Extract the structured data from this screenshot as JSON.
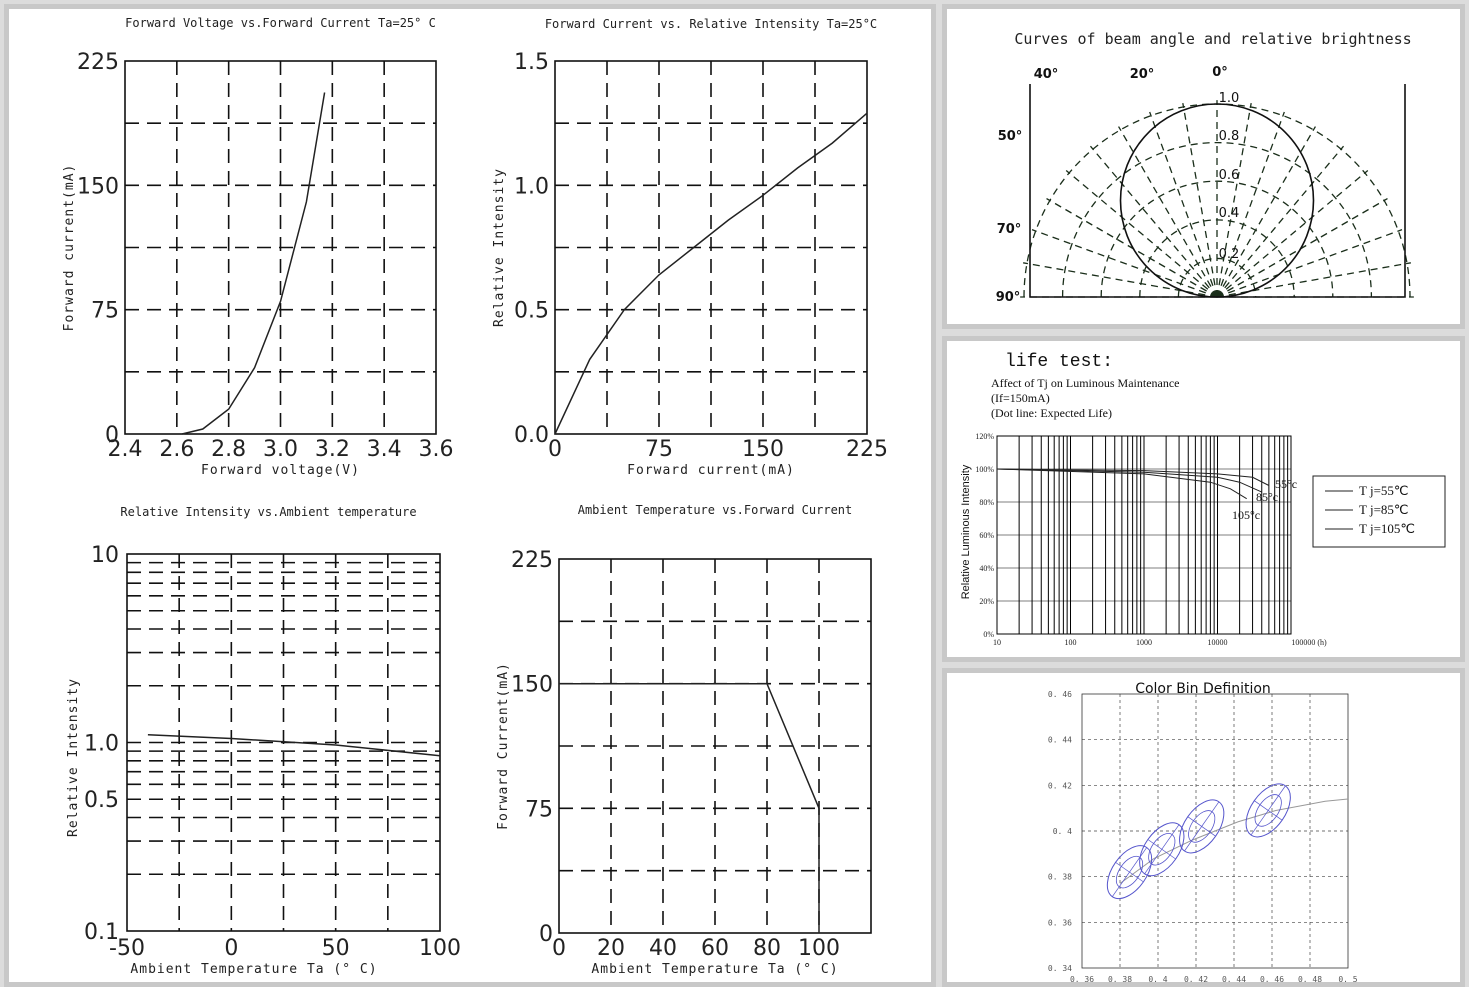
{
  "chart_data": [
    {
      "id": "vf_if",
      "type": "line",
      "title": "Forward Voltage vs.Forward Current Ta=25° C",
      "xlabel": "Forward voltage(V)",
      "ylabel": "Forward current(mA)",
      "xlim": [
        2.4,
        3.6
      ],
      "ylim": [
        0,
        225
      ],
      "xticks": [
        "2.4",
        "2.6",
        "2.8",
        "3.0",
        "3.2",
        "3.4",
        "3.6"
      ],
      "yticks": [
        "0",
        "75",
        "150",
        "225"
      ],
      "grid": true,
      "series": [
        {
          "x": [
            2.62,
            2.7,
            2.8,
            2.9,
            3.0,
            3.1,
            3.17
          ],
          "y": [
            0,
            3,
            15,
            40,
            80,
            140,
            206
          ]
        }
      ]
    },
    {
      "id": "if_iv",
      "type": "line",
      "title": "Forward Current vs. Relative Intensity  Ta=25°C",
      "xlabel": "Forward current(mA)",
      "ylabel": "Relative Intensity",
      "xlim": [
        0,
        225
      ],
      "ylim": [
        0,
        1.5
      ],
      "xticks": [
        "0",
        "75",
        "150",
        "225"
      ],
      "yticks": [
        "0.0",
        "0.5",
        "1.0",
        "1.5"
      ],
      "grid": true,
      "series": [
        {
          "x": [
            0,
            25,
            50,
            75,
            100,
            125,
            150,
            175,
            200,
            225
          ],
          "y": [
            0,
            0.3,
            0.5,
            0.64,
            0.75,
            0.86,
            0.96,
            1.07,
            1.17,
            1.29
          ]
        }
      ]
    },
    {
      "id": "ta_iv",
      "type": "line",
      "title": "Relative Intensity vs.Ambient temperature",
      "xlabel": "Ambient Temperature Ta (° C)",
      "ylabel": "Relative Intensity",
      "xlim": [
        -50,
        100
      ],
      "ylim": [
        0.1,
        10
      ],
      "yscale": "log",
      "xticks": [
        "-50",
        "0",
        "50",
        "100"
      ],
      "yticks": [
        "0.1",
        "0.5",
        "1.0",
        "10"
      ],
      "grid": true,
      "series": [
        {
          "x": [
            -40,
            0,
            50,
            100
          ],
          "y": [
            1.1,
            1.05,
            0.97,
            0.85
          ]
        }
      ]
    },
    {
      "id": "ta_if",
      "type": "line",
      "title": "Ambient Temperature vs.Forward Current",
      "xlabel": "Ambient Temperature Ta (° C)",
      "ylabel": "Forward Current(mA)",
      "xlim": [
        0,
        120
      ],
      "ylim": [
        0,
        225
      ],
      "xticks": [
        "0",
        "20",
        "40",
        "60",
        "80",
        "100"
      ],
      "yticks": [
        "0",
        "75",
        "150",
        "225"
      ],
      "grid": true,
      "series": [
        {
          "x": [
            0,
            80,
            100,
            100
          ],
          "y": [
            150,
            150,
            75,
            0
          ]
        }
      ]
    },
    {
      "id": "beam",
      "type": "line",
      "title": "Curves of beam angle and relative brightness",
      "angle_labels": [
        "40°",
        "20°",
        "0°",
        "50°",
        "70°",
        "90°"
      ],
      "radius_labels": [
        "1.0",
        "0.8",
        "0.6",
        "0.4",
        "0.2"
      ]
    },
    {
      "id": "life",
      "type": "line",
      "heading": "life test:",
      "title_lines": [
        "Affect of Tj on Luminous Maintenance",
        "(If=150mA)",
        "(Dot line: Expected Life)"
      ],
      "ylabel": "Relative Luminous Intensity",
      "xscale": "log",
      "xticks": [
        "10",
        "100",
        "1000",
        "10000",
        "100000 (h)"
      ],
      "yticks": [
        "0%",
        "20%",
        "40%",
        "60%",
        "80%",
        "100%",
        "120%"
      ],
      "curve_labels": [
        "55°c",
        "85°c",
        "105°c"
      ],
      "legend": [
        "T j=55℃",
        "T j=85℃",
        "T j=105℃"
      ],
      "series": [
        {
          "x": [
            10,
            1000,
            10000,
            30000,
            50000
          ],
          "y": [
            100,
            99,
            97,
            95,
            90
          ]
        },
        {
          "x": [
            10,
            1000,
            10000,
            20000,
            40000
          ],
          "y": [
            100,
            98,
            95,
            92,
            86
          ]
        },
        {
          "x": [
            10,
            1000,
            8000,
            15000,
            25000
          ],
          "y": [
            100,
            97,
            92,
            88,
            82
          ]
        }
      ]
    },
    {
      "id": "colorbin",
      "type": "scatter",
      "title": "Color Bin Definition",
      "xlim": [
        0.36,
        0.5
      ],
      "ylim": [
        0.34,
        0.46
      ],
      "xticks": [
        "0. 36",
        "0. 38",
        "0. 4",
        "0. 42",
        "0. 44",
        "0. 46",
        "0. 48",
        "0. 5"
      ],
      "yticks": [
        "0. 34",
        "0. 36",
        "0. 38",
        "0. 4",
        "0. 42",
        "0. 44",
        "0. 46"
      ],
      "series": [
        {
          "x": [
            0.38,
            0.398,
            0.418,
            0.442,
            0.462,
            0.488,
            0.5
          ],
          "y": [
            0.377,
            0.388,
            0.396,
            0.404,
            0.409,
            0.413,
            0.414
          ]
        }
      ],
      "bins": [
        {
          "cx": 0.385,
          "cy": 0.382
        },
        {
          "cx": 0.402,
          "cy": 0.392
        },
        {
          "cx": 0.423,
          "cy": 0.402
        },
        {
          "cx": 0.458,
          "cy": 0.409
        }
      ]
    }
  ]
}
